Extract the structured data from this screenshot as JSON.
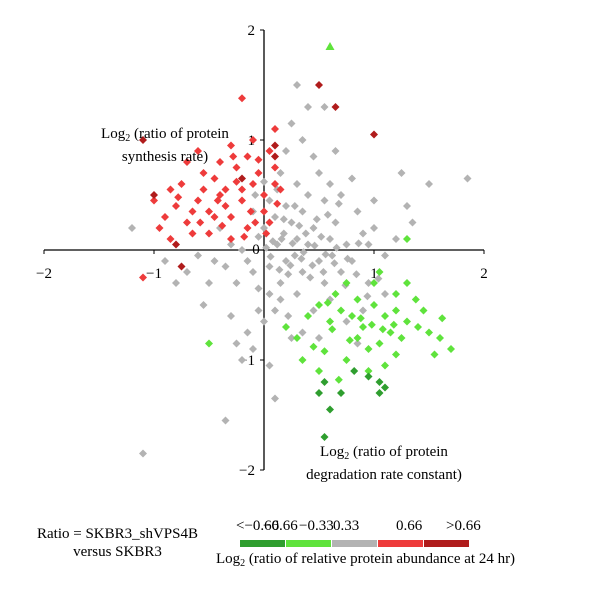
{
  "chart_data": {
    "type": "scatter",
    "xlabel_prefix": "Log",
    "xlabel_sub": "2",
    "xlabel_line1": "(ratio of protein",
    "xlabel_line2": "degradation rate constant)",
    "ylabel_prefix": "Log",
    "ylabel_sub": "2",
    "ylabel_line1": "(ratio of protein",
    "ylabel_line2": "synthesis rate)",
    "xlim": [
      -2,
      2
    ],
    "ylim": [
      -2,
      2
    ],
    "x_ticks": [
      {
        "value": -2,
        "label": "−2"
      },
      {
        "value": -1,
        "label": "−1"
      },
      {
        "value": 0,
        "label": "0"
      },
      {
        "value": 1,
        "label": "1"
      },
      {
        "value": 2,
        "label": "2"
      }
    ],
    "y_ticks": [
      {
        "value": -2,
        "label": "−2"
      },
      {
        "value": -1,
        "label": "−1"
      },
      {
        "value": 0,
        "label": "0"
      },
      {
        "value": 1,
        "label": "1"
      },
      {
        "value": 2,
        "label": "2"
      }
    ],
    "ratio_line1": "Ratio = SKBR3_shVPS4B",
    "ratio_line2": "versus SKBR3",
    "legend": {
      "title_prefix": "Log",
      "title_sub": "2",
      "title_text": "(ratio of relative protein abundance at 24 hr)",
      "ticks": [
        "<−0.66",
        "−0.66",
        "−0.33",
        "0.33",
        "0.66",
        ">0.66"
      ],
      "colors": [
        "#2f9e2f",
        "#5fe33c",
        "#b3b3b3",
        "#ee3b3b",
        "#b01c1c"
      ]
    },
    "series": [
      {
        "color": "#b3b3b3",
        "marker": "diamond",
        "points": [
          [
            0.12,
            0.05
          ],
          [
            0.2,
            -0.1
          ],
          [
            0.3,
            0.1
          ],
          [
            0.35,
            -0.2
          ],
          [
            0.05,
            -0.15
          ],
          [
            -0.05,
            0.12
          ],
          [
            0.25,
            0.25
          ],
          [
            0.4,
            0.05
          ],
          [
            0.15,
            -0.3
          ],
          [
            0.5,
            -0.1
          ],
          [
            0.1,
            0.3
          ],
          [
            0.45,
            0.2
          ],
          [
            0.55,
            -0.3
          ],
          [
            0.3,
            -0.4
          ],
          [
            0.6,
            0.1
          ],
          [
            0.7,
            -0.2
          ],
          [
            0.2,
            0.4
          ],
          [
            0.35,
            0.35
          ],
          [
            -0.1,
            -0.2
          ],
          [
            0.0,
            0.2
          ],
          [
            0.28,
            -0.05
          ],
          [
            0.18,
            0.15
          ],
          [
            0.42,
            -0.25
          ],
          [
            0.08,
            0.08
          ],
          [
            0.32,
            0.22
          ],
          [
            0.22,
            -0.22
          ],
          [
            0.48,
            0.28
          ],
          [
            0.62,
            -0.05
          ],
          [
            0.75,
            0.05
          ],
          [
            0.65,
            0.25
          ],
          [
            0.8,
            -0.1
          ],
          [
            0.9,
            0.15
          ],
          [
            1.0,
            0.2
          ],
          [
            1.2,
            0.1
          ],
          [
            1.1,
            -0.05
          ],
          [
            0.85,
            0.35
          ],
          [
            0.55,
            0.45
          ],
          [
            0.4,
            0.5
          ],
          [
            0.3,
            0.6
          ],
          [
            0.5,
            0.7
          ],
          [
            0.6,
            0.6
          ],
          [
            0.7,
            0.5
          ],
          [
            0.45,
            0.85
          ],
          [
            0.35,
            1.0
          ],
          [
            0.2,
            0.9
          ],
          [
            0.15,
            0.7
          ],
          [
            0.25,
            1.15
          ],
          [
            0.4,
            1.3
          ],
          [
            0.3,
            1.5
          ],
          [
            0.55,
            1.3
          ],
          [
            0.65,
            0.9
          ],
          [
            0.8,
            0.65
          ],
          [
            1.0,
            0.45
          ],
          [
            1.3,
            0.4
          ],
          [
            1.25,
            0.7
          ],
          [
            1.5,
            0.6
          ],
          [
            1.85,
            0.65
          ],
          [
            1.35,
            0.25
          ],
          [
            0.95,
            0.05
          ],
          [
            0.05,
            -0.4
          ],
          [
            -0.05,
            -0.35
          ],
          [
            -0.15,
            -0.1
          ],
          [
            -0.25,
            -0.3
          ],
          [
            -0.35,
            -0.15
          ],
          [
            -0.2,
            0.0
          ],
          [
            -0.3,
            0.05
          ],
          [
            -0.45,
            -0.1
          ],
          [
            -0.4,
            0.2
          ],
          [
            -0.1,
            0.35
          ],
          [
            -0.5,
            -0.3
          ],
          [
            -0.6,
            -0.05
          ],
          [
            -0.7,
            -0.2
          ],
          [
            -0.8,
            -0.3
          ],
          [
            -0.9,
            -0.1
          ],
          [
            -0.55,
            -0.5
          ],
          [
            -0.3,
            -0.6
          ],
          [
            -0.15,
            -0.75
          ],
          [
            0.0,
            -0.65
          ],
          [
            0.1,
            -0.55
          ],
          [
            -0.1,
            -0.9
          ],
          [
            -0.2,
            -1.0
          ],
          [
            -0.25,
            -0.85
          ],
          [
            0.05,
            -1.05
          ],
          [
            0.1,
            -1.35
          ],
          [
            -0.35,
            -1.55
          ],
          [
            -1.1,
            -1.85
          ],
          [
            -1.2,
            0.2
          ],
          [
            0.22,
            -0.6
          ],
          [
            0.35,
            -0.75
          ],
          [
            0.15,
            -0.45
          ],
          [
            -0.05,
            -0.55
          ],
          [
            0.45,
            -0.55
          ],
          [
            0.25,
            -0.8
          ],
          [
            0.6,
            -0.45
          ],
          [
            0.5,
            -0.8
          ],
          [
            0.75,
            -0.65
          ],
          [
            0.9,
            -0.55
          ],
          [
            0.95,
            -0.3
          ],
          [
            1.1,
            -0.4
          ],
          [
            0.85,
            -0.85
          ],
          [
            0.05,
            0.45
          ],
          [
            0.12,
            0.55
          ],
          [
            -0.08,
            0.5
          ],
          [
            0.0,
            0.62
          ],
          [
            0.18,
            0.28
          ],
          [
            0.28,
            0.4
          ],
          [
            0.38,
            0.15
          ],
          [
            0.52,
            0.12
          ],
          [
            0.58,
            0.32
          ],
          [
            0.68,
            0.42
          ],
          [
            0.14,
            -0.18
          ],
          [
            0.24,
            -0.14
          ],
          [
            0.34,
            -0.08
          ],
          [
            0.44,
            -0.14
          ],
          [
            0.54,
            -0.2
          ],
          [
            0.64,
            -0.12
          ],
          [
            0.74,
            -0.32
          ],
          [
            0.84,
            -0.22
          ],
          [
            0.94,
            -0.42
          ],
          [
            1.04,
            -0.26
          ],
          [
            0.02,
            0.02
          ],
          [
            0.06,
            -0.06
          ],
          [
            0.16,
            0.1
          ],
          [
            0.26,
            0.06
          ],
          [
            0.36,
            -0.02
          ],
          [
            0.46,
            0.04
          ],
          [
            0.56,
            -0.04
          ],
          [
            0.66,
            0.02
          ],
          [
            0.76,
            -0.08
          ],
          [
            0.86,
            0.06
          ]
        ]
      },
      {
        "color": "#ee3b3b",
        "marker": "diamond",
        "points": [
          [
            -0.8,
            0.4
          ],
          [
            -0.9,
            0.3
          ],
          [
            -0.7,
            0.25
          ],
          [
            -0.6,
            0.45
          ],
          [
            -0.5,
            0.35
          ],
          [
            -0.4,
            0.5
          ],
          [
            -0.3,
            0.3
          ],
          [
            -0.2,
            0.45
          ],
          [
            -0.1,
            0.6
          ],
          [
            0.0,
            0.5
          ],
          [
            -0.75,
            0.6
          ],
          [
            -0.55,
            0.7
          ],
          [
            -0.45,
            0.65
          ],
          [
            -0.35,
            0.55
          ],
          [
            -0.25,
            0.75
          ],
          [
            -0.15,
            0.85
          ],
          [
            -0.05,
            0.7
          ],
          [
            0.05,
            0.9
          ],
          [
            -0.65,
            0.15
          ],
          [
            -0.85,
            0.55
          ],
          [
            -0.95,
            0.2
          ],
          [
            -0.5,
            0.15
          ],
          [
            -0.3,
            0.1
          ],
          [
            -0.15,
            0.2
          ],
          [
            0.05,
            0.25
          ],
          [
            -0.6,
            0.9
          ],
          [
            -0.3,
            0.95
          ],
          [
            0.1,
            0.75
          ],
          [
            0.15,
            0.55
          ],
          [
            -0.1,
            1.0
          ],
          [
            -0.2,
            0.55
          ],
          [
            -0.4,
            0.8
          ],
          [
            -0.7,
            0.8
          ],
          [
            -0.85,
            0.1
          ],
          [
            -0.55,
            0.55
          ],
          [
            -0.35,
            0.4
          ],
          [
            -0.12,
            0.35
          ],
          [
            0.0,
            0.35
          ],
          [
            -1.0,
            0.45
          ],
          [
            -1.1,
            -0.25
          ],
          [
            -0.2,
            1.38
          ],
          [
            -0.45,
            0.3
          ],
          [
            -0.65,
            0.35
          ],
          [
            -0.78,
            0.48
          ],
          [
            -0.25,
            0.62
          ],
          [
            -0.05,
            0.82
          ],
          [
            0.12,
            0.42
          ],
          [
            -0.18,
            0.12
          ],
          [
            -0.38,
            0.22
          ],
          [
            -0.58,
            0.25
          ],
          [
            -0.08,
            0.25
          ],
          [
            0.02,
            0.15
          ],
          [
            -0.42,
            0.45
          ],
          [
            -0.28,
            0.85
          ],
          [
            0.1,
            1.1
          ],
          [
            0.1,
            0.6
          ]
        ]
      },
      {
        "color": "#b01c1c",
        "marker": "diamond",
        "points": [
          [
            -1.1,
            1.0
          ],
          [
            -1.0,
            0.5
          ],
          [
            -0.8,
            0.05
          ],
          [
            -0.2,
            0.65
          ],
          [
            0.1,
            0.85
          ],
          [
            0.5,
            1.5
          ],
          [
            0.65,
            1.3
          ],
          [
            1.0,
            1.05
          ],
          [
            -0.75,
            -0.15
          ],
          [
            0.1,
            0.95
          ]
        ]
      },
      {
        "color": "#5fe33c",
        "marker": "diamond",
        "points": [
          [
            0.5,
            -0.5
          ],
          [
            0.6,
            -0.65
          ],
          [
            0.7,
            -0.55
          ],
          [
            0.8,
            -0.6
          ],
          [
            0.9,
            -0.7
          ],
          [
            1.0,
            -0.5
          ],
          [
            1.1,
            -0.6
          ],
          [
            1.2,
            -0.55
          ],
          [
            1.3,
            -0.65
          ],
          [
            0.85,
            -0.8
          ],
          [
            0.95,
            -0.9
          ],
          [
            1.05,
            -0.85
          ],
          [
            1.15,
            -0.75
          ],
          [
            1.25,
            -0.8
          ],
          [
            1.4,
            -0.7
          ],
          [
            1.5,
            -0.75
          ],
          [
            1.6,
            -0.8
          ],
          [
            1.55,
            -0.95
          ],
          [
            0.4,
            -0.6
          ],
          [
            0.3,
            -0.8
          ],
          [
            0.35,
            -1.0
          ],
          [
            0.5,
            -1.1
          ],
          [
            0.75,
            -1.0
          ],
          [
            0.95,
            -1.1
          ],
          [
            1.1,
            -1.05
          ],
          [
            0.65,
            -0.4
          ],
          [
            0.75,
            -0.3
          ],
          [
            0.85,
            -0.45
          ],
          [
            1.0,
            -0.3
          ],
          [
            1.2,
            -0.4
          ],
          [
            1.3,
            -0.3
          ],
          [
            1.05,
            -0.2
          ],
          [
            1.2,
            -0.95
          ],
          [
            1.45,
            -0.55
          ],
          [
            1.7,
            -0.9
          ],
          [
            0.2,
            -0.7
          ],
          [
            -0.5,
            -0.85
          ],
          [
            1.3,
            0.1
          ],
          [
            0.62,
            -0.72
          ],
          [
            0.78,
            -0.82
          ],
          [
            0.88,
            -0.62
          ],
          [
            0.98,
            -0.68
          ],
          [
            1.08,
            -0.72
          ],
          [
            1.18,
            -0.68
          ],
          [
            0.45,
            -0.88
          ],
          [
            0.55,
            -0.92
          ],
          [
            0.68,
            -1.18
          ],
          [
            0.58,
            -0.48
          ],
          [
            1.38,
            -0.45
          ],
          [
            1.62,
            -0.62
          ]
        ]
      },
      {
        "color": "#2f9e2f",
        "marker": "diamond",
        "points": [
          [
            0.5,
            -1.3
          ],
          [
            0.55,
            -1.2
          ],
          [
            0.7,
            -1.3
          ],
          [
            0.6,
            -1.45
          ],
          [
            0.95,
            -1.15
          ],
          [
            1.05,
            -1.2
          ],
          [
            1.1,
            -1.25
          ],
          [
            1.05,
            -1.3
          ],
          [
            0.82,
            -1.1
          ],
          [
            0.55,
            -1.7
          ]
        ]
      },
      {
        "color": "#5fe33c",
        "marker": "triangle",
        "points": [
          [
            0.6,
            1.85
          ]
        ]
      }
    ]
  }
}
